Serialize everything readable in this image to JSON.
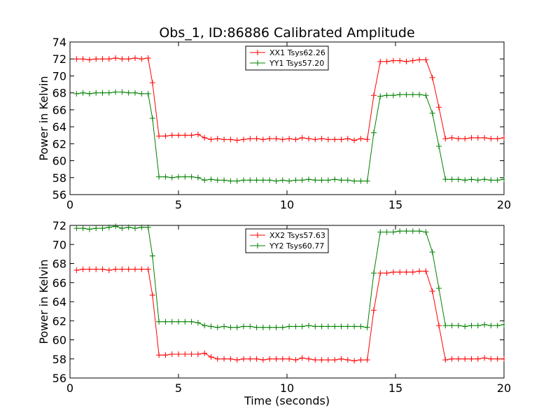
{
  "chart_data": {
    "title": "Obs_1, ID:86886 Calibrated Amplitude",
    "xlabel": "Time (seconds)",
    "panels": [
      {
        "type": "line",
        "ylabel": "Power in Kelvin",
        "xlim": [
          0,
          20
        ],
        "ylim": [
          56,
          74
        ],
        "xticks": [
          "0",
          "5",
          "10",
          "15",
          "20"
        ],
        "yticks": [
          "56",
          "58",
          "60",
          "62",
          "64",
          "66",
          "68",
          "70",
          "72",
          "74"
        ],
        "legend_position": "top-center",
        "x": [
          0.3,
          0.6,
          0.9,
          1.2,
          1.5,
          1.8,
          2.1,
          2.4,
          2.7,
          3.0,
          3.3,
          3.6,
          3.8,
          4.1,
          4.4,
          4.7,
          5.0,
          5.3,
          5.6,
          5.9,
          6.2,
          6.5,
          6.8,
          7.1,
          7.4,
          7.7,
          8.0,
          8.3,
          8.6,
          8.9,
          9.2,
          9.5,
          9.8,
          10.1,
          10.4,
          10.7,
          11.0,
          11.3,
          11.6,
          11.9,
          12.2,
          12.5,
          12.8,
          13.1,
          13.4,
          13.7,
          14.0,
          14.3,
          14.6,
          14.9,
          15.2,
          15.5,
          15.8,
          16.1,
          16.4,
          16.7,
          17.0,
          17.3,
          17.6,
          17.9,
          18.2,
          18.5,
          18.8,
          19.1,
          19.4,
          19.7,
          20.0
        ],
        "series": [
          {
            "name": "XX1 Tsys62.26",
            "color": "#ff0000",
            "values": [
              72.0,
              72.0,
              71.9,
              72.0,
              72.0,
              72.0,
              72.1,
              72.0,
              72.0,
              72.1,
              72.0,
              72.1,
              69.2,
              62.9,
              62.9,
              63.0,
              63.0,
              63.0,
              63.0,
              63.1,
              62.7,
              62.5,
              62.6,
              62.5,
              62.5,
              62.4,
              62.5,
              62.6,
              62.6,
              62.5,
              62.6,
              62.6,
              62.5,
              62.6,
              62.5,
              62.7,
              62.6,
              62.5,
              62.6,
              62.5,
              62.5,
              62.5,
              62.6,
              62.4,
              62.6,
              62.5,
              67.7,
              71.7,
              71.7,
              71.8,
              71.8,
              71.7,
              71.8,
              71.9,
              71.9,
              69.8,
              66.3,
              62.6,
              62.7,
              62.6,
              62.6,
              62.7,
              62.7,
              62.7,
              62.6,
              62.6,
              62.7
            ]
          },
          {
            "name": "YY1 Tsys57.20",
            "color": "#008000",
            "values": [
              67.9,
              68.0,
              67.9,
              68.0,
              68.0,
              68.0,
              68.1,
              68.1,
              68.0,
              68.0,
              67.9,
              67.9,
              65.0,
              58.1,
              58.1,
              58.0,
              58.1,
              58.1,
              58.1,
              58.0,
              57.7,
              57.8,
              57.7,
              57.7,
              57.6,
              57.6,
              57.7,
              57.7,
              57.7,
              57.7,
              57.7,
              57.6,
              57.7,
              57.6,
              57.7,
              57.7,
              57.8,
              57.7,
              57.7,
              57.7,
              57.8,
              57.7,
              57.7,
              57.6,
              57.6,
              57.6,
              63.3,
              67.6,
              67.7,
              67.7,
              67.8,
              67.8,
              67.8,
              67.8,
              67.7,
              65.6,
              61.7,
              57.8,
              57.8,
              57.8,
              57.7,
              57.8,
              57.7,
              57.8,
              57.7,
              57.7,
              57.8
            ]
          }
        ]
      },
      {
        "type": "line",
        "ylabel": "Power in Kelvin",
        "xlim": [
          0,
          20
        ],
        "ylim": [
          56,
          72
        ],
        "xticks": [
          "0",
          "5",
          "10",
          "15",
          "20"
        ],
        "yticks": [
          "56",
          "58",
          "60",
          "62",
          "64",
          "66",
          "68",
          "70",
          "72"
        ],
        "legend_position": "top-center",
        "x": [
          0.3,
          0.6,
          0.9,
          1.2,
          1.5,
          1.8,
          2.1,
          2.4,
          2.7,
          3.0,
          3.3,
          3.6,
          3.8,
          4.1,
          4.4,
          4.7,
          5.0,
          5.3,
          5.6,
          5.9,
          6.2,
          6.5,
          6.8,
          7.1,
          7.4,
          7.7,
          8.0,
          8.3,
          8.6,
          8.9,
          9.2,
          9.5,
          9.8,
          10.1,
          10.4,
          10.7,
          11.0,
          11.3,
          11.6,
          11.9,
          12.2,
          12.5,
          12.8,
          13.1,
          13.4,
          13.7,
          14.0,
          14.3,
          14.6,
          14.9,
          15.2,
          15.5,
          15.8,
          16.1,
          16.4,
          16.7,
          17.0,
          17.3,
          17.6,
          17.9,
          18.2,
          18.5,
          18.8,
          19.1,
          19.4,
          19.7,
          20.0
        ],
        "series": [
          {
            "name": "XX2 Tsys57.63",
            "color": "#ff0000",
            "values": [
              67.3,
              67.4,
              67.4,
              67.4,
              67.4,
              67.3,
              67.4,
              67.4,
              67.4,
              67.4,
              67.4,
              67.4,
              64.7,
              58.4,
              58.4,
              58.5,
              58.5,
              58.5,
              58.5,
              58.5,
              58.6,
              58.2,
              58.0,
              58.0,
              58.0,
              57.9,
              58.0,
              58.0,
              58.0,
              57.9,
              58.0,
              58.0,
              58.0,
              58.0,
              57.9,
              58.1,
              58.0,
              57.9,
              57.9,
              57.9,
              57.9,
              58.0,
              57.9,
              57.8,
              57.9,
              57.9,
              63.1,
              67.0,
              67.0,
              67.1,
              67.1,
              67.1,
              67.1,
              67.2,
              67.2,
              65.1,
              61.5,
              57.9,
              58.0,
              58.0,
              58.0,
              58.0,
              58.0,
              58.1,
              58.0,
              58.0,
              58.0
            ]
          },
          {
            "name": "YY2 Tsys60.77",
            "color": "#008000",
            "values": [
              71.7,
              71.7,
              71.6,
              71.7,
              71.7,
              71.8,
              71.9,
              71.7,
              71.8,
              71.7,
              71.8,
              71.8,
              68.8,
              61.9,
              61.9,
              61.9,
              61.9,
              61.9,
              61.9,
              61.8,
              61.5,
              61.4,
              61.3,
              61.4,
              61.3,
              61.3,
              61.4,
              61.4,
              61.3,
              61.3,
              61.3,
              61.3,
              61.3,
              61.4,
              61.4,
              61.4,
              61.5,
              61.4,
              61.4,
              61.4,
              61.4,
              61.4,
              61.4,
              61.4,
              61.4,
              61.3,
              67.0,
              71.3,
              71.3,
              71.3,
              71.4,
              71.4,
              71.4,
              71.4,
              71.3,
              69.2,
              65.4,
              61.5,
              61.5,
              61.5,
              61.4,
              61.5,
              61.5,
              61.6,
              61.5,
              61.5,
              61.6
            ]
          }
        ]
      }
    ]
  }
}
